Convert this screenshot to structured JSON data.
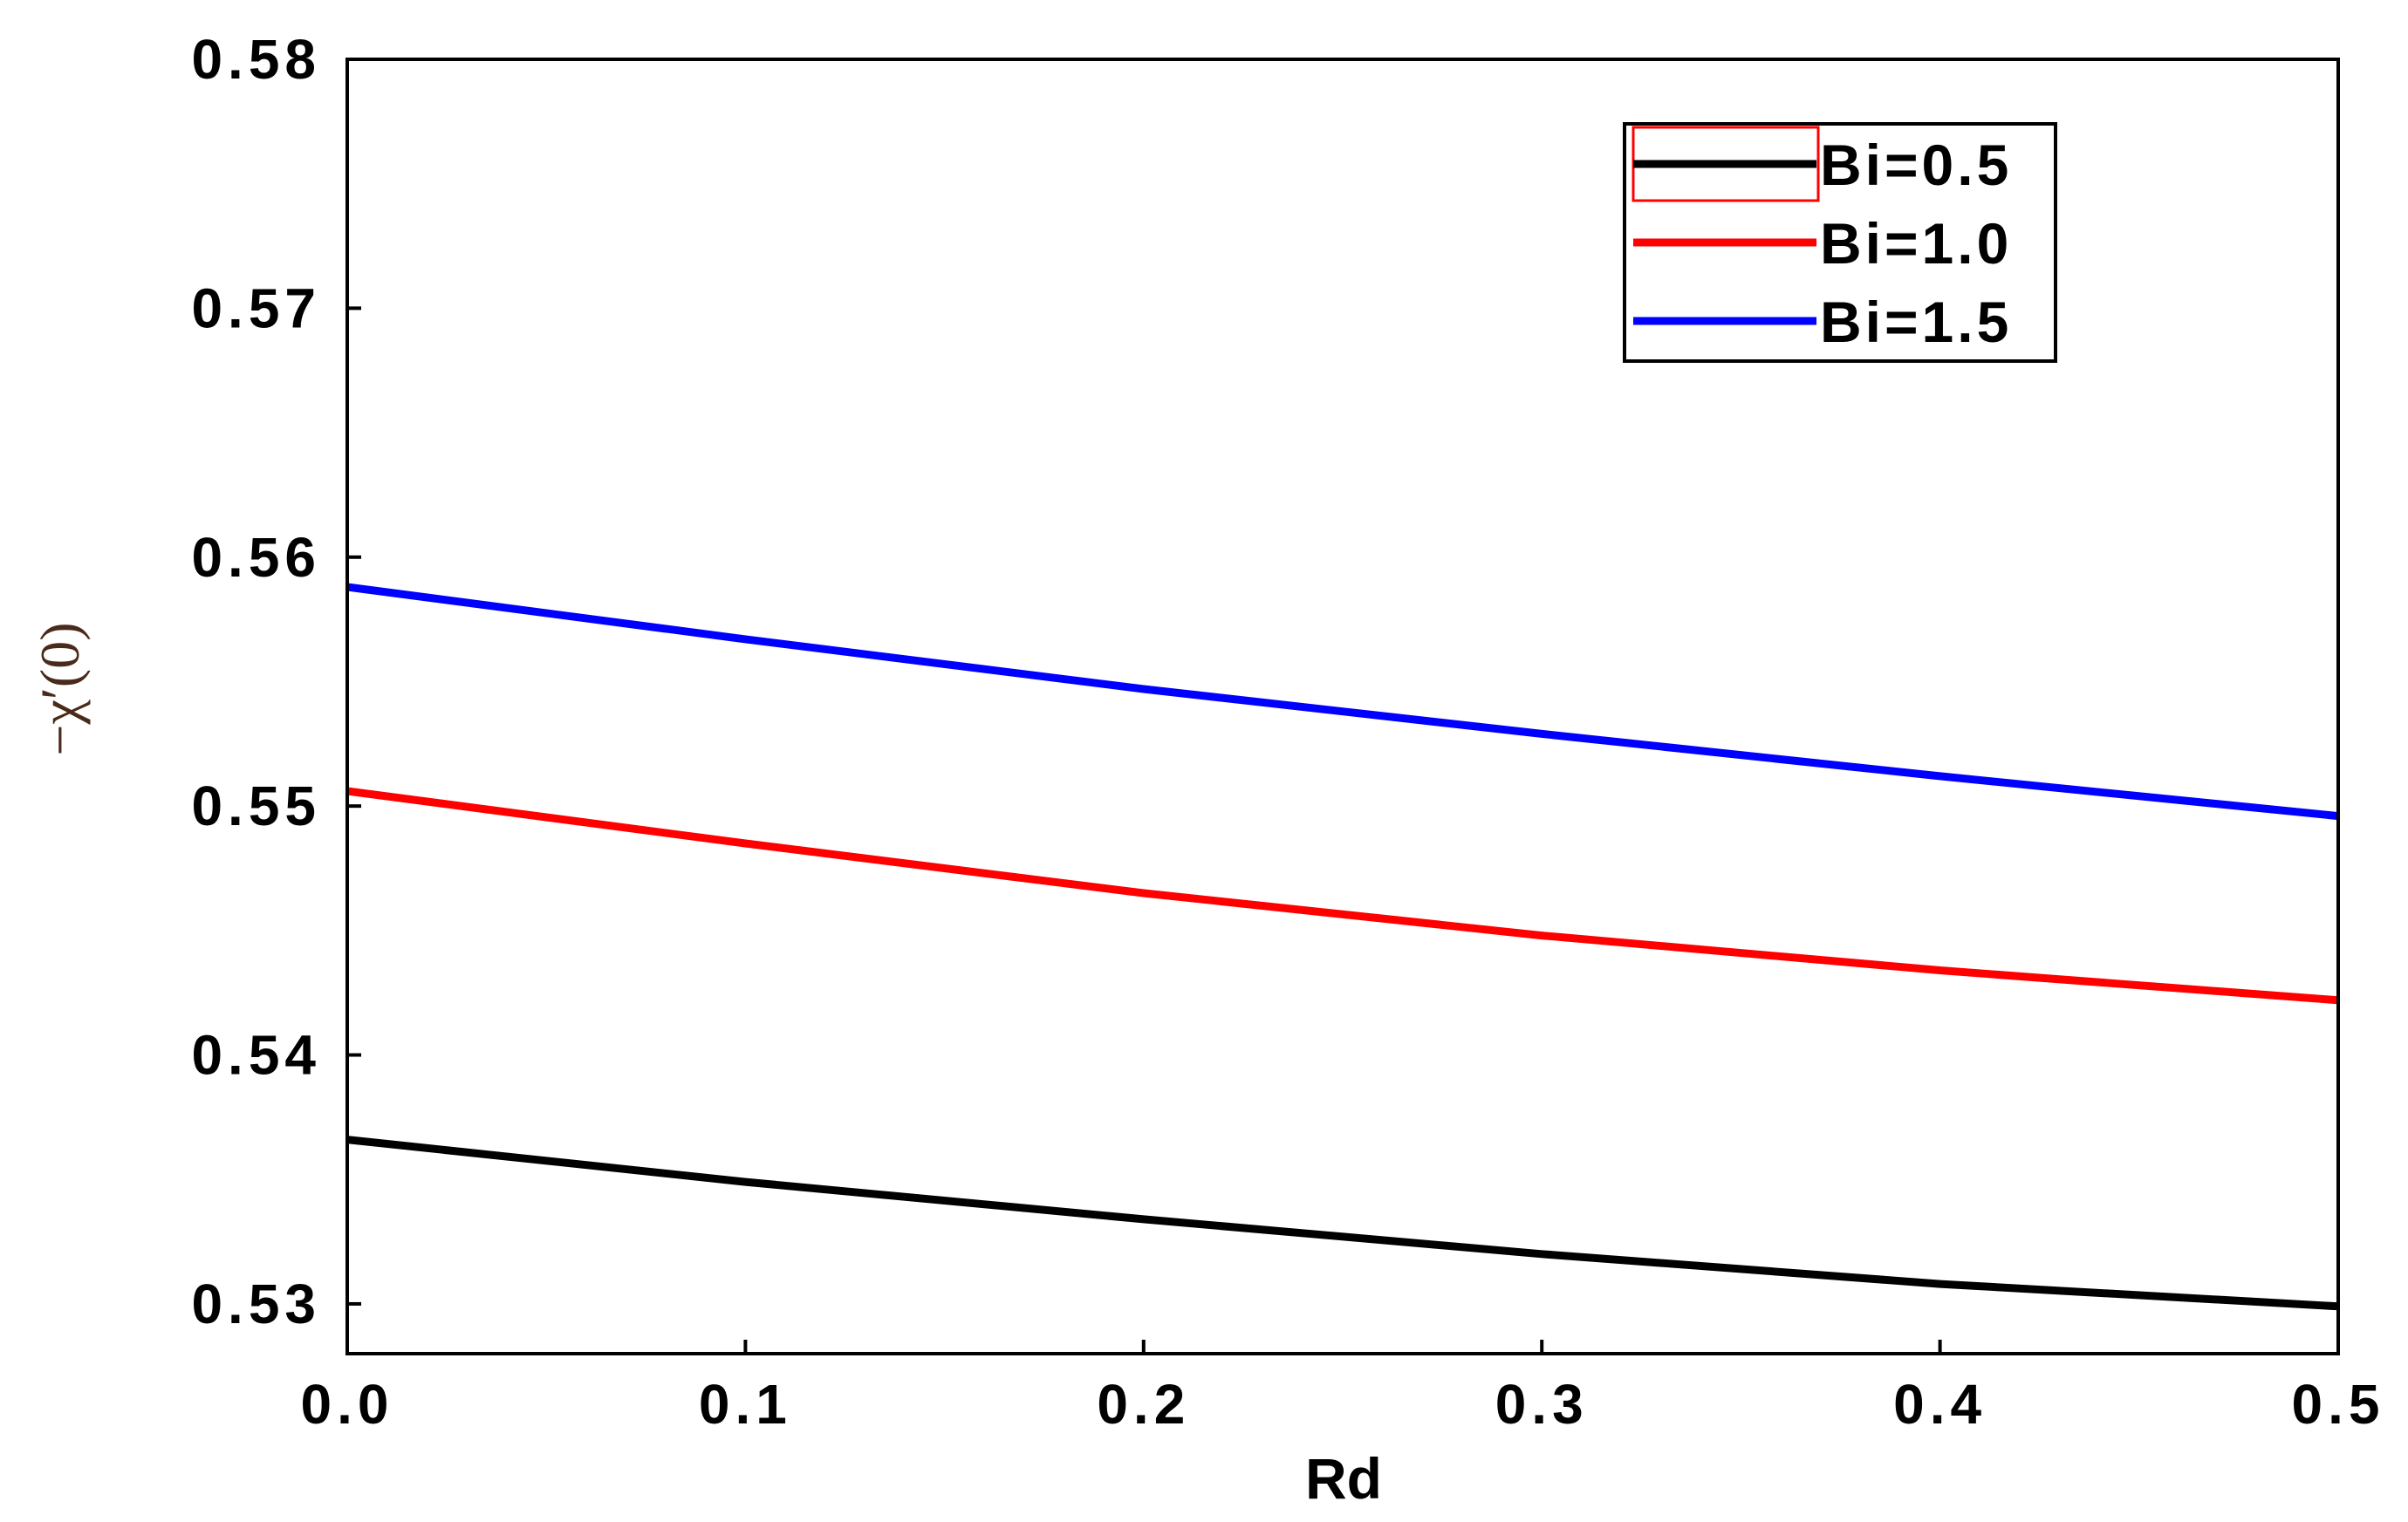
{
  "chart_data": {
    "type": "line",
    "title": "",
    "xlabel": "Rd",
    "ylabel": "−χ′(0)",
    "xlim": [
      0.0,
      0.5
    ],
    "ylim": [
      0.528,
      0.58
    ],
    "xticks": [
      "0.0",
      "0.1",
      "0.2",
      "0.3",
      "0.4",
      "0.5"
    ],
    "xtick_values": [
      0.0,
      0.1,
      0.2,
      0.3,
      0.4,
      0.5
    ],
    "yticks": [
      "0.53",
      "0.54",
      "0.55",
      "0.56",
      "0.57",
      "0.58"
    ],
    "ytick_values": [
      0.53,
      0.54,
      0.55,
      0.56,
      0.57,
      0.58
    ],
    "grid": false,
    "legend_position": "top-right",
    "x": [
      0.0,
      0.1,
      0.2,
      0.3,
      0.4,
      0.5
    ],
    "series": [
      {
        "name": "Bi=0.5",
        "color": "#000000",
        "values": [
          0.5366,
          0.5349,
          0.5334,
          0.532,
          0.5308,
          0.5299
        ]
      },
      {
        "name": "Bi=1.0",
        "color": "#ff0000",
        "values": [
          0.5506,
          0.5485,
          0.5465,
          0.5448,
          0.5434,
          0.5422
        ]
      },
      {
        "name": "Bi=1.5",
        "color": "#0000ff",
        "values": [
          0.5588,
          0.5567,
          0.5547,
          0.5529,
          0.5512,
          0.5496
        ]
      }
    ]
  }
}
